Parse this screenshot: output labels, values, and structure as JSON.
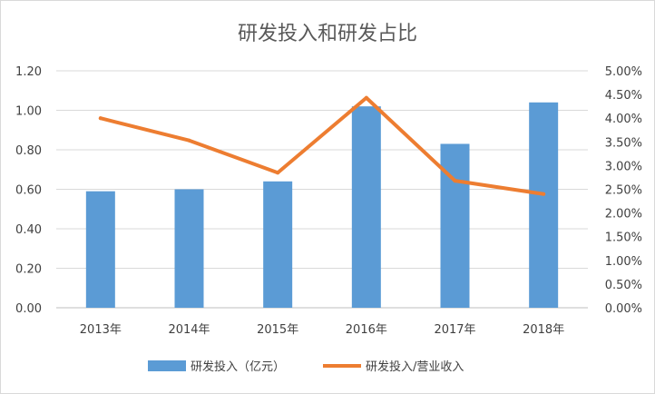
{
  "chart_data": {
    "type": "bar",
    "title": "研发投入和研发占比",
    "categories": [
      "2013年",
      "2014年",
      "2015年",
      "2016年",
      "2017年",
      "2018年"
    ],
    "series": [
      {
        "name": "研发投入（亿元）",
        "type": "bar",
        "axis": "left",
        "color": "#5B9BD5",
        "values": [
          0.59,
          0.6,
          0.64,
          1.02,
          0.83,
          1.04
        ]
      },
      {
        "name": "研发投入/营业收入",
        "type": "line",
        "axis": "right",
        "color": "#ED7D31",
        "values": [
          4.0,
          3.53,
          2.85,
          4.43,
          2.68,
          2.4
        ]
      }
    ],
    "y_left": {
      "ylim": [
        0,
        1.2
      ],
      "ticks": [
        "0.00",
        "0.20",
        "0.40",
        "0.60",
        "0.80",
        "1.00",
        "1.20"
      ]
    },
    "y_right": {
      "ylim": [
        0,
        5
      ],
      "ticks": [
        "0.00%",
        "0.50%",
        "1.00%",
        "1.50%",
        "2.00%",
        "2.50%",
        "3.00%",
        "3.50%",
        "4.00%",
        "4.50%",
        "5.00%"
      ]
    },
    "grid": true,
    "legend": "bottom"
  }
}
